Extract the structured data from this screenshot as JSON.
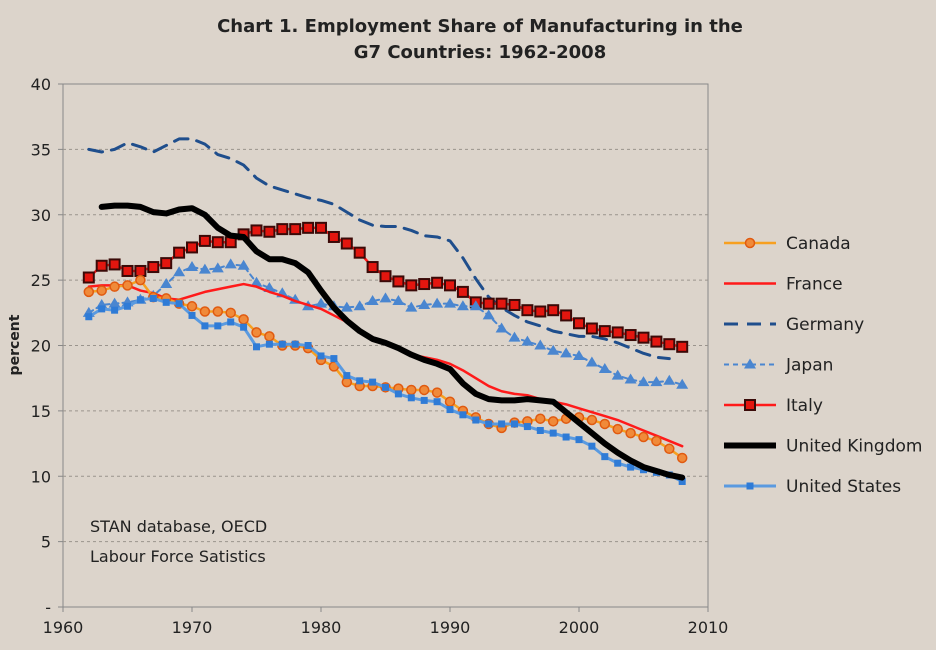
{
  "chart_data": {
    "type": "line",
    "title_line1": "Chart 1. Employment Share of Manufacturing in the",
    "title_line2": "G7 Countries: 1962-2008",
    "xlabel": "",
    "ylabel": "percent",
    "xlim": [
      1960,
      2010
    ],
    "ylim": [
      0,
      40
    ],
    "x_ticks": [
      "1960",
      "1970",
      "1980",
      "1990",
      "2000",
      "2010"
    ],
    "y_ticks": [
      "-",
      "5",
      "10",
      "15",
      "20",
      "25",
      "30",
      "35",
      "40"
    ],
    "grid": "horizontal dashed",
    "legend_position": "right",
    "annotation": [
      "STAN database, OECD",
      "Labour Force Satistics"
    ],
    "start_year": 1962,
    "series": [
      {
        "name": "Canada",
        "color": "#f7941d",
        "style": "circle",
        "values": [
          24.1,
          24.2,
          24.5,
          24.6,
          25.0,
          23.7,
          23.6,
          23.2,
          23.0,
          22.6,
          22.6,
          22.5,
          22.0,
          21.0,
          20.7,
          20.0,
          20.0,
          19.8,
          18.9,
          18.4,
          17.2,
          16.9,
          16.9,
          16.8,
          16.7,
          16.6,
          16.6,
          16.4,
          15.7,
          15.0,
          14.5,
          14.0,
          13.7,
          14.1,
          14.2,
          14.4,
          14.2,
          14.4,
          14.5,
          14.3,
          14.0,
          13.6,
          13.3,
          13.0,
          12.7,
          12.1,
          11.4
        ]
      },
      {
        "name": "France",
        "color": "#ff1a1a",
        "style": "line",
        "values": [
          24.5,
          24.6,
          24.6,
          24.6,
          24.2,
          24.0,
          23.6,
          23.5,
          23.8,
          24.1,
          24.3,
          24.5,
          24.7,
          24.5,
          24.1,
          23.8,
          23.4,
          23.1,
          22.8,
          22.3,
          21.8,
          21.2,
          20.6,
          20.1,
          19.7,
          19.3,
          19.1,
          18.9,
          18.6,
          18.1,
          17.5,
          16.9,
          16.5,
          16.3,
          16.2,
          15.9,
          15.7,
          15.5,
          15.2,
          14.9,
          14.6,
          14.3,
          13.9,
          13.5,
          13.1,
          12.7,
          12.3
        ]
      },
      {
        "name": "Germany",
        "color": "#1f4e8c",
        "style": "dashed",
        "values": [
          35.0,
          34.8,
          35.0,
          35.5,
          35.2,
          34.8,
          35.3,
          35.8,
          35.8,
          35.4,
          34.6,
          34.3,
          33.8,
          32.8,
          32.2,
          31.9,
          31.6,
          31.3,
          31.1,
          30.8,
          30.2,
          29.6,
          29.2,
          29.1,
          29.1,
          28.8,
          28.4,
          28.3,
          28.0,
          26.7,
          25.1,
          23.7,
          22.9,
          22.3,
          21.8,
          21.5,
          21.1,
          20.9,
          20.7,
          20.7,
          20.5,
          20.2,
          19.8,
          19.4,
          19.1,
          19.0,
          null
        ]
      },
      {
        "name": "Japan",
        "color": "#3d7fd0",
        "style": "triangle-dashed",
        "values": [
          22.5,
          23.1,
          23.2,
          23.3,
          23.5,
          23.8,
          24.7,
          25.6,
          26.0,
          25.8,
          25.9,
          26.2,
          26.1,
          24.8,
          24.4,
          24.0,
          23.5,
          23.0,
          23.2,
          23.0,
          22.9,
          23.0,
          23.4,
          23.6,
          23.4,
          22.9,
          23.1,
          23.2,
          23.2,
          23.0,
          23.0,
          22.3,
          21.3,
          20.6,
          20.3,
          20.0,
          19.6,
          19.4,
          19.2,
          18.7,
          18.2,
          17.7,
          17.4,
          17.2,
          17.2,
          17.3,
          17.0
        ]
      },
      {
        "name": "Italy",
        "color": "#e3160f",
        "style": "square",
        "values": [
          25.2,
          26.1,
          26.2,
          25.7,
          25.7,
          26.0,
          26.3,
          27.1,
          27.5,
          28.0,
          27.9,
          27.9,
          28.5,
          28.8,
          28.7,
          28.9,
          28.9,
          29.0,
          29.0,
          28.3,
          27.8,
          27.1,
          26.0,
          25.3,
          24.9,
          24.6,
          24.7,
          24.8,
          24.6,
          24.1,
          23.3,
          23.2,
          23.2,
          23.1,
          22.7,
          22.6,
          22.7,
          22.3,
          21.7,
          21.3,
          21.1,
          21.0,
          20.8,
          20.6,
          20.3,
          20.1,
          19.9
        ]
      },
      {
        "name": "United Kingdom",
        "color": "#000000",
        "style": "thick",
        "values": [
          null,
          30.6,
          30.7,
          30.7,
          30.6,
          30.2,
          30.1,
          30.4,
          30.5,
          30.0,
          29.0,
          28.4,
          28.3,
          27.2,
          26.6,
          26.6,
          26.3,
          25.6,
          24.2,
          22.9,
          21.9,
          21.1,
          20.5,
          20.2,
          19.8,
          19.3,
          18.9,
          18.6,
          18.2,
          17.1,
          16.3,
          15.9,
          15.8,
          15.8,
          15.9,
          15.8,
          15.7,
          14.9,
          14.1,
          13.3,
          12.5,
          11.8,
          11.2,
          10.7,
          10.4,
          10.1,
          9.9
        ]
      },
      {
        "name": "United States",
        "color": "#2f7bd6",
        "style": "small-square",
        "values": [
          22.2,
          22.8,
          22.7,
          23.0,
          23.5,
          23.6,
          23.3,
          23.2,
          22.3,
          21.5,
          21.5,
          21.8,
          21.4,
          19.9,
          20.1,
          20.1,
          20.1,
          20.0,
          19.2,
          19.0,
          17.7,
          17.3,
          17.2,
          16.8,
          16.3,
          16.0,
          15.8,
          15.7,
          15.1,
          14.7,
          14.3,
          14.0,
          14.0,
          14.0,
          13.8,
          13.5,
          13.3,
          13.0,
          12.8,
          12.3,
          11.5,
          11.0,
          10.7,
          10.5,
          10.3,
          10.1,
          9.6
        ]
      }
    ]
  }
}
